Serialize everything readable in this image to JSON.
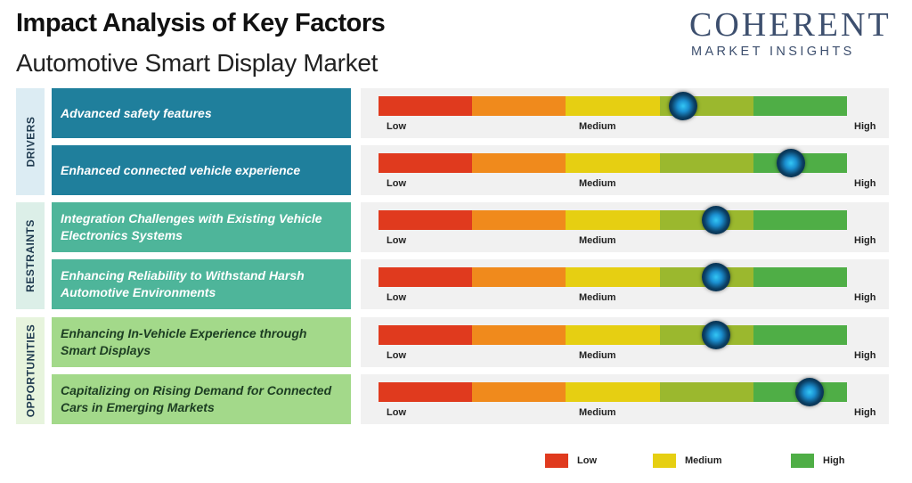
{
  "header": {
    "title": "Impact Analysis of Key Factors",
    "subtitle": "Automotive Smart Display Market"
  },
  "logo": {
    "top": "COHERENT",
    "bottom": "MARKET INSIGHTS"
  },
  "colors": {
    "low": "#e03a1e",
    "medium_low": "#f08a1c",
    "medium": "#e6cf12",
    "medium_high": "#9bb82e",
    "high": "#4fae46",
    "drivers_box": "#1f7f9c",
    "restraints_box": "#4eb59a",
    "opportunities_box": "#a3d98a"
  },
  "scale": {
    "low": "Low",
    "medium": "Medium",
    "high": "High"
  },
  "chart_data": {
    "type": "table",
    "title": "Impact Analysis of Key Factors",
    "subtitle": "Automotive Smart Display Market",
    "scale": [
      "Low",
      "Medium",
      "High"
    ],
    "groups": [
      {
        "name": "DRIVERS",
        "factors": [
          {
            "label": "Advanced safety features",
            "impact": 0.65
          },
          {
            "label": "Enhanced connected vehicle experience",
            "impact": 0.88
          }
        ]
      },
      {
        "name": "RESTRAINTS",
        "factors": [
          {
            "label": "Integration Challenges with Existing Vehicle Electronics Systems",
            "impact": 0.72
          },
          {
            "label": "Enhancing Reliability to Withstand Harsh Automotive Environments",
            "impact": 0.72
          }
        ]
      },
      {
        "name": "OPPORTUNITIES",
        "factors": [
          {
            "label": "Enhancing In-Vehicle Experience through Smart Displays",
            "impact": 0.72
          },
          {
            "label": "Capitalizing on Rising Demand for Connected Cars in Emerging Markets",
            "impact": 0.92
          }
        ]
      }
    ],
    "legend": [
      "Low",
      "Medium",
      "High"
    ]
  }
}
